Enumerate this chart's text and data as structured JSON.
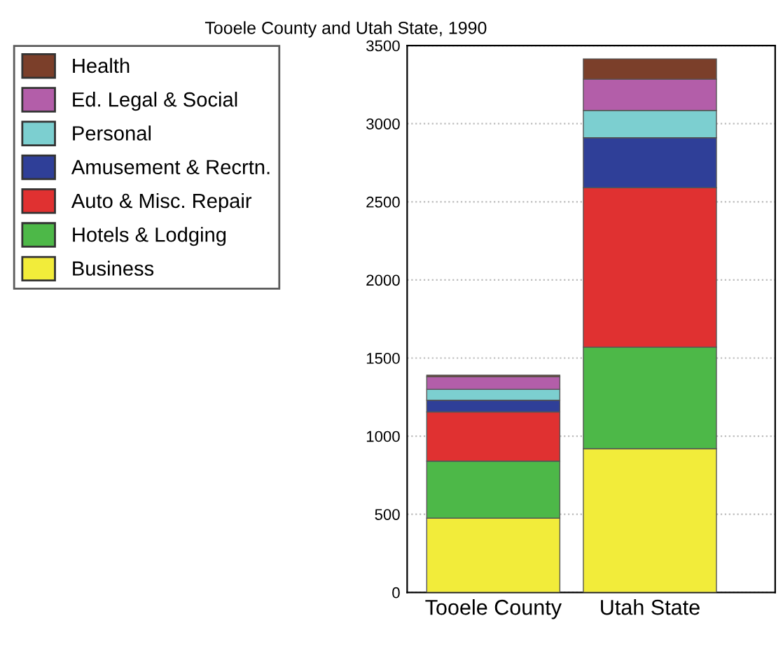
{
  "chart_data": {
    "type": "bar",
    "title": "Tooele County and Utah State, 1990",
    "categories": [
      "Tooele County",
      "Utah State"
    ],
    "stacked": true,
    "series": [
      {
        "name": "Business",
        "color": "#f2ec3a",
        "values": [
          475,
          920
        ]
      },
      {
        "name": "Hotels & Lodging",
        "color": "#4db848",
        "values": [
          365,
          650
        ]
      },
      {
        "name": "Auto & Misc. Repair",
        "color": "#e03131",
        "values": [
          315,
          1020
        ]
      },
      {
        "name": "Amusement & Recrtn.",
        "color": "#2f3f98",
        "values": [
          75,
          320
        ]
      },
      {
        "name": "Personal",
        "color": "#7ccfd0",
        "values": [
          70,
          175
        ]
      },
      {
        "name": "Ed. Legal & Social",
        "color": "#b35ea9",
        "values": [
          80,
          200
        ]
      },
      {
        "name": "Health",
        "color": "#7b3f2a",
        "values": [
          10,
          130
        ]
      }
    ],
    "ylim": [
      0,
      3500
    ],
    "yticks": [
      0,
      500,
      1000,
      1500,
      2000,
      2500,
      3000,
      3500
    ],
    "grid": "y",
    "legend": "top left"
  }
}
